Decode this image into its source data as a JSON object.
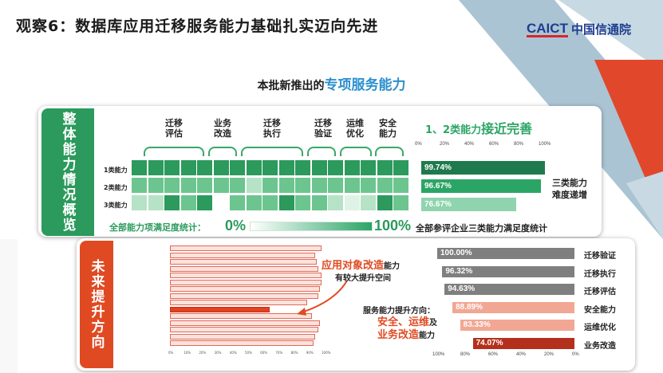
{
  "title": "观察6：数据库应用迁移服务能力基础扎实迈向先进",
  "logo": {
    "en": "CAICT",
    "cn": "中国信通院"
  },
  "subtitle": {
    "prefix": "本批新推出的",
    "highlight": "专项服务能力"
  },
  "top_panel": {
    "tab_label": "整体能力情况概览",
    "columns": [
      {
        "line1": "迁移",
        "line2": "评估"
      },
      {
        "line1": "业务",
        "line2": "改造"
      },
      {
        "line1": "迁移",
        "line2": "执行"
      },
      {
        "line1": "迁移",
        "line2": "验证"
      },
      {
        "line1": "运维",
        "line2": "优化"
      },
      {
        "line1": "安全",
        "line2": "能力"
      }
    ],
    "rows": [
      "1类能力",
      "2类能力",
      "3类能力"
    ],
    "summary_label": "全部能力项满足度统计：",
    "summary_min": "0%",
    "summary_max": "100%",
    "summary_label2": "全部参评企业三类能力满足度统计",
    "right_header": {
      "prefix": "1、2类能力",
      "emphasis": "接近完善"
    },
    "right_ticks": [
      "0%",
      "20%",
      "40%",
      "60%",
      "80%",
      "100%"
    ],
    "right_note": {
      "line1": "三类能力",
      "line2": "难度递增"
    },
    "colors": {
      "dark": "#2b9a5c",
      "mid": "#6cc58f",
      "light": "#b6e2c6",
      "pale": "#dff2e6",
      "white": "#ffffff"
    }
  },
  "chart_data": [
    {
      "type": "bar",
      "orientation": "horizontal",
      "categories": [
        "1类能力",
        "2类能力",
        "3类能力"
      ],
      "values": [
        99.74,
        96.67,
        76.67
      ],
      "labels": [
        "99.74%",
        "96.67%",
        "76.67%"
      ],
      "xlim": [
        0,
        100
      ],
      "colors": [
        "#1e7a4d",
        "#2ba565",
        "#8fd4ae"
      ]
    },
    {
      "type": "bar",
      "orientation": "horizontal",
      "categories": [
        "迁移验证",
        "迁移执行",
        "迁移评估",
        "安全能力",
        "运维优化",
        "业务改造"
      ],
      "values": [
        100.0,
        96.32,
        94.63,
        88.89,
        83.33,
        74.07
      ],
      "labels": [
        "100.00%",
        "96.32%",
        "94.63%",
        "88.89%",
        "83.33%",
        "74.07%"
      ],
      "xlim": [
        0,
        100
      ],
      "x_ticks": [
        "100%",
        "80%",
        "60%",
        "40%",
        "20%",
        "0%"
      ],
      "colors": [
        "#7f7f7f",
        "#7f7f7f",
        "#7f7f7f",
        "#f1a793",
        "#f1a793",
        "#b5301c"
      ]
    }
  ],
  "bottom_panel": {
    "tab_label": "未来提升方向",
    "note1": {
      "highlight": "应用对象改造",
      "suffix": "能力"
    },
    "note1b": "有较大提升空间",
    "note2": "服务能力提升方向：",
    "note3": {
      "line1a": "安全、运维",
      "line1b": "及",
      "line2a": "业务改造",
      "line2b": "能力"
    },
    "detail_ticks": [
      "0%",
      "10%",
      "20%",
      "30%",
      "40%",
      "50%",
      "60%",
      "70%",
      "80%",
      "90%",
      "100%"
    ]
  }
}
